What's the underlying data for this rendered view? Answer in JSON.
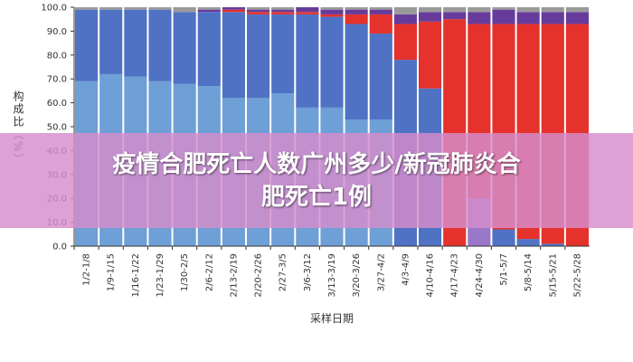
{
  "banner": {
    "line1": "疫情合肥死亡人数广州多少/新冠肺炎合",
    "line2": "肥死亡1例"
  },
  "chart_data": {
    "type": "bar",
    "stacked": true,
    "title": "",
    "xlabel": "采样日期",
    "ylabel": "构成比（%）",
    "ylim": [
      0,
      100
    ],
    "yticks": [
      "0.0",
      "10.0",
      "20.0",
      "30.0",
      "40.0",
      "50.0",
      "60.0",
      "70.0",
      "80.0",
      "90.0",
      "100.0"
    ],
    "categories": [
      "1/2-1/8",
      "1/9-1/15",
      "1/16-1/22",
      "1/23-1/29",
      "1/30-2/5",
      "2/6-2/12",
      "2/13-2/19",
      "2/20-2/26",
      "2/27-3/5",
      "3/6-3/12",
      "3/13-3/19",
      "3/20-3/26",
      "3/27-4/2",
      "4/3-4/9",
      "4/10-4/16",
      "4/17-4/23",
      "4/24-4/30",
      "5/1-5/7",
      "5/8-5/14",
      "5/15-5/21",
      "5/22-5/28"
    ],
    "series": [
      {
        "name": "light-blue",
        "color": "#6e9fd6",
        "values": [
          69,
          72,
          71,
          69,
          68,
          67,
          62,
          62,
          64,
          58,
          58,
          53,
          53,
          0,
          0,
          0,
          0,
          0,
          0,
          0,
          0
        ]
      },
      {
        "name": "blue",
        "color": "#4f72c4",
        "values": [
          30,
          27,
          28,
          30,
          30,
          31,
          36,
          35,
          33,
          39,
          38,
          40,
          36,
          78,
          66,
          0,
          0,
          7,
          3,
          1,
          0
        ]
      },
      {
        "name": "purple-light",
        "color": "#9a78c8",
        "values": [
          0,
          0,
          0,
          0,
          0,
          0,
          0,
          0,
          0,
          0,
          0,
          0,
          0,
          0,
          0,
          0,
          20,
          0,
          0,
          0,
          0
        ]
      },
      {
        "name": "red",
        "color": "#e5322c",
        "values": [
          0,
          0,
          0,
          0,
          0,
          0,
          1,
          1,
          1,
          1,
          1,
          4,
          8,
          15,
          28,
          95,
          73,
          86,
          90,
          92,
          93
        ]
      },
      {
        "name": "purple",
        "color": "#673b9c",
        "values": [
          0,
          0,
          0,
          0,
          0,
          1,
          1,
          1,
          1,
          2,
          2,
          2,
          2,
          4,
          4,
          3,
          5,
          6,
          5,
          5,
          5
        ]
      },
      {
        "name": "gray",
        "color": "#9a9a9a",
        "values": [
          1,
          1,
          1,
          1,
          2,
          1,
          0,
          1,
          1,
          0,
          1,
          1,
          1,
          3,
          2,
          2,
          2,
          1,
          2,
          2,
          2
        ]
      }
    ]
  }
}
